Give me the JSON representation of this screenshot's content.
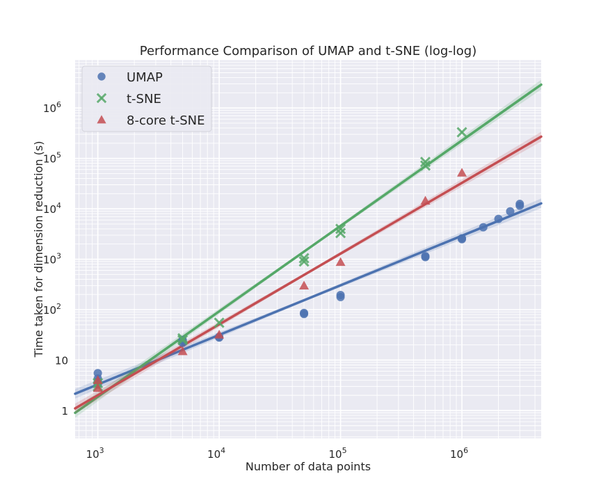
{
  "chart_data": {
    "type": "scatter",
    "title": "Performance Comparison of UMAP and t-SNE (log-log)",
    "xlabel": "Number of data points",
    "ylabel": "Time taken for dimension reduction (s)",
    "x_scale": "log",
    "y_scale": "log",
    "xlim": [
      650,
      4500000
    ],
    "ylim": [
      0.28,
      9000000
    ],
    "grid": true,
    "legend_position": "top-left",
    "x_ticks": [
      {
        "value": 1000,
        "base": "10",
        "exp": "3"
      },
      {
        "value": 10000,
        "base": "10",
        "exp": "4"
      },
      {
        "value": 100000,
        "base": "10",
        "exp": "5"
      },
      {
        "value": 1000000,
        "base": "10",
        "exp": "6"
      }
    ],
    "y_ticks": [
      {
        "value": 1,
        "base": "1",
        "exp": ""
      },
      {
        "value": 10,
        "base": "10",
        "exp": ""
      },
      {
        "value": 100,
        "base": "10",
        "exp": "2"
      },
      {
        "value": 1000,
        "base": "10",
        "exp": "3"
      },
      {
        "value": 10000,
        "base": "10",
        "exp": "4"
      },
      {
        "value": 100000,
        "base": "10",
        "exp": "5"
      },
      {
        "value": 1000000,
        "base": "10",
        "exp": "6"
      }
    ],
    "series": [
      {
        "name": "UMAP",
        "marker": "circle",
        "color": "#4c72b0",
        "points": [
          [
            1000,
            5.5
          ],
          [
            1000,
            4.3
          ],
          [
            1000,
            3.8
          ],
          [
            1000,
            3.3
          ],
          [
            5000,
            25
          ],
          [
            5000,
            24
          ],
          [
            5000,
            22
          ],
          [
            10000,
            28
          ],
          [
            10000,
            29
          ],
          [
            50000,
            82
          ],
          [
            50000,
            86
          ],
          [
            100000,
            178
          ],
          [
            100000,
            195
          ],
          [
            500000,
            1100
          ],
          [
            500000,
            1150
          ],
          [
            1000000,
            2500
          ],
          [
            1000000,
            2600
          ],
          [
            1500000,
            4300
          ],
          [
            2000000,
            6300
          ],
          [
            2500000,
            8900
          ],
          [
            3000000,
            11500
          ],
          [
            3000000,
            12500
          ]
        ],
        "fit": [
          [
            650,
            2.15
          ],
          [
            4500000,
            12800
          ]
        ]
      },
      {
        "name": "t-SNE",
        "marker": "x",
        "color": "#55a868",
        "points": [
          [
            1000,
            3.0
          ],
          [
            1000,
            3.5
          ],
          [
            5000,
            25
          ],
          [
            5000,
            27
          ],
          [
            10000,
            55
          ],
          [
            50000,
            900
          ],
          [
            50000,
            1050
          ],
          [
            100000,
            3300
          ],
          [
            100000,
            4000
          ],
          [
            500000,
            72000
          ],
          [
            500000,
            85000
          ],
          [
            1000000,
            330000
          ]
        ],
        "fit": [
          [
            650,
            0.9
          ],
          [
            4500000,
            2900000
          ]
        ]
      },
      {
        "name": "8-core t-SNE",
        "marker": "triangle",
        "color": "#c44e52",
        "points": [
          [
            1000,
            2.8
          ],
          [
            1000,
            4.0
          ],
          [
            5000,
            15
          ],
          [
            10000,
            32
          ],
          [
            50000,
            300
          ],
          [
            100000,
            880
          ],
          [
            500000,
            14500
          ],
          [
            1000000,
            52000
          ]
        ],
        "fit": [
          [
            650,
            1.1
          ],
          [
            4500000,
            270000
          ]
        ]
      }
    ]
  }
}
